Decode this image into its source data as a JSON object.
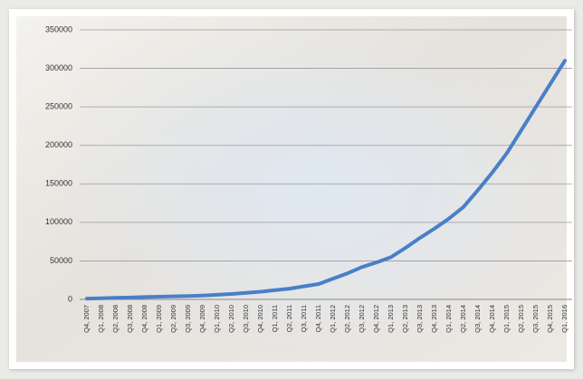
{
  "chart_data": {
    "type": "line",
    "categories": [
      "Q4, 2007",
      "Q1, 2008",
      "Q2, 2008",
      "Q3, 2008",
      "Q4, 2008",
      "Q1, 2009",
      "Q2, 2009",
      "Q3, 2009",
      "Q4, 2009",
      "Q1, 2010",
      "Q2, 2010",
      "Q3, 2010",
      "Q4, 2010",
      "Q1, 2011",
      "Q2, 2011",
      "Q3, 2011",
      "Q4, 2011",
      "Q1, 2012",
      "Q2, 2012",
      "Q3, 2012",
      "Q4, 2012",
      "Q1, 2013",
      "Q2, 2013",
      "Q3, 2013",
      "Q4, 2013",
      "Q1, 2014",
      "Q2, 2014",
      "Q3, 2014",
      "Q4, 2014",
      "Q1, 2015",
      "Q2, 2015",
      "Q3, 2015",
      "Q4, 2015",
      "Q1, 2016"
    ],
    "values": [
      1000,
      1500,
      2000,
      2500,
      3000,
      3500,
      4000,
      4500,
      5000,
      6000,
      7000,
      8500,
      10000,
      12000,
      14000,
      17000,
      20000,
      27000,
      34000,
      42000,
      48000,
      55000,
      67000,
      80000,
      92000,
      105000,
      120000,
      142000,
      165000,
      190000,
      220000,
      250000,
      280000,
      310000
    ],
    "color": "#4a7fc8",
    "ylim": [
      0,
      350000
    ],
    "yticks": [
      0,
      50000,
      100000,
      150000,
      200000,
      250000,
      300000,
      350000
    ],
    "grid": true
  }
}
